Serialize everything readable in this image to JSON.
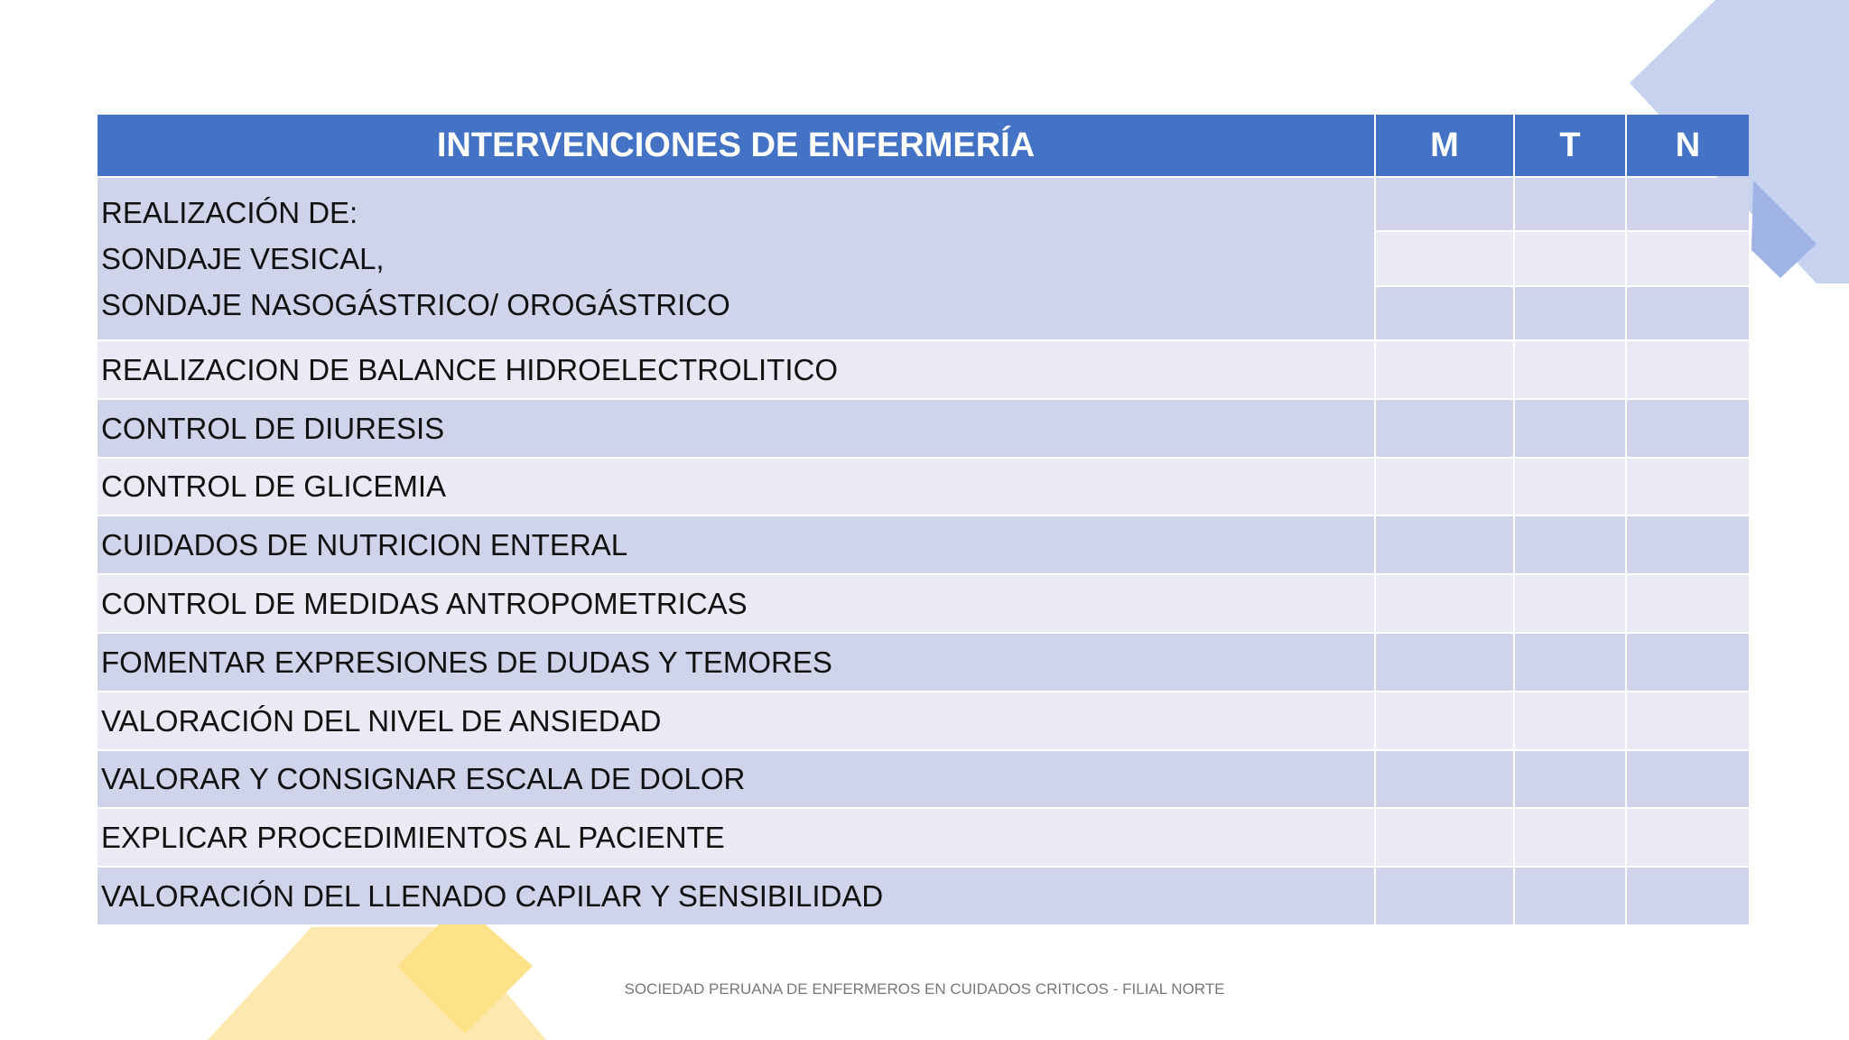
{
  "header": {
    "columns": [
      "INTERVENCIONES DE ENFERMERÍA",
      "M",
      "T",
      "N"
    ]
  },
  "table": {
    "rows": [
      [
        "REALIZACIÓN DE:",
        "SONDAJE VESICAL,",
        "SONDAJE NASOGÁSTRICO/ OROGÁSTRICO"
      ],
      [
        "REALIZACION DE BALANCE HIDROELECTROLITICO"
      ],
      [
        "CONTROL DE DIURESIS"
      ],
      [
        "CONTROL DE GLICEMIA"
      ],
      [
        "CUIDADOS DE NUTRICION ENTERAL"
      ],
      [
        "CONTROL DE MEDIDAS ANTROPOMETRICAS"
      ],
      [
        "FOMENTAR EXPRESIONES DE DUDAS Y TEMORES"
      ],
      [
        "VALORACIÓN DEL NIVEL DE ANSIEDAD"
      ],
      [
        "VALORAR Y CONSIGNAR ESCALA DE DOLOR"
      ],
      [
        "EXPLICAR PROCEDIMIENTOS AL PACIENTE"
      ],
      [
        "VALORACIÓN DEL LLENADO CAPILAR Y SENSIBILIDAD"
      ]
    ]
  },
  "footer": "SOCIEDAD PERUANA DE ENFERMEROS EN CUIDADOS CRITICOS - FILIAL NORTE"
}
